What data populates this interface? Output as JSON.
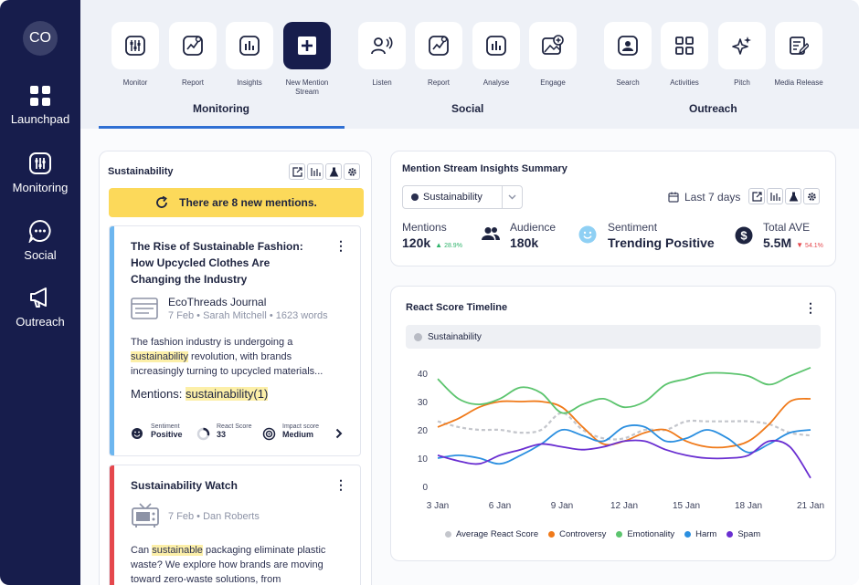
{
  "sidebar": {
    "avatar": "CO",
    "items": [
      {
        "label": "Launchpad",
        "icon": "grid-icon"
      },
      {
        "label": "Monitoring",
        "icon": "sliders-icon"
      },
      {
        "label": "Social",
        "icon": "chat-icon"
      },
      {
        "label": "Outreach",
        "icon": "megaphone-icon"
      }
    ]
  },
  "toolbar": {
    "groups": [
      {
        "label": "Monitoring",
        "active": true
      },
      {
        "label": "Social"
      },
      {
        "label": "Outreach"
      }
    ],
    "tools": [
      {
        "label": "Monitor",
        "icon": "monitor-sliders-icon"
      },
      {
        "label": "Report",
        "icon": "report-chart-icon"
      },
      {
        "label": "Insights",
        "icon": "insights-bars-icon"
      },
      {
        "label": "New Mention Stream",
        "icon": "plus-icon"
      },
      {
        "label": "Listen",
        "icon": "listen-icon"
      },
      {
        "label": "Report",
        "icon": "report-chart-icon"
      },
      {
        "label": "Analyse",
        "icon": "analyse-bars-icon"
      },
      {
        "label": "Engage",
        "icon": "engage-image-icon"
      },
      {
        "label": "Search",
        "icon": "search-person-icon"
      },
      {
        "label": "Activities",
        "icon": "activities-grid-icon"
      },
      {
        "label": "Pitch",
        "icon": "sparkle-icon"
      },
      {
        "label": "Media Release",
        "icon": "edit-doc-icon"
      }
    ],
    "accent": "#2f6fd3"
  },
  "feed": {
    "title": "Sustainability",
    "banner": "There are 8 new mentions.",
    "articles": [
      {
        "title": "The Rise of Sustainable Fashion: How Upcycled Clothes Are Changing the Industry",
        "source": "EcoThreads Journal",
        "meta": "7 Feb • Sarah Mitchell • 1623 words",
        "body_pre": "The fashion industry is undergoing a ",
        "body_hl": "sustainability",
        "body_post": " revolution, with brands increasingly turning to upcycled materials...",
        "mentions_label": "Mentions:",
        "mentions_value": "sustainability(1)",
        "stripe_color": "#6db6ef",
        "metrics": [
          {
            "label": "Sentiment",
            "value": "Positive"
          },
          {
            "label": "React Score",
            "value": "33"
          },
          {
            "label": "Impact score",
            "value": "Medium"
          }
        ]
      },
      {
        "title": "Sustainability Watch",
        "meta": "7 Feb • Dan Roberts",
        "body_pre": "Can ",
        "body_hl": "sustainable",
        "body_post": " packaging eliminate plastic waste? We explore how brands are moving toward zero-waste solutions, from",
        "stripe_color": "#e5484d"
      }
    ]
  },
  "summary": {
    "title": "Mention Stream Insights Summary",
    "stream_select": "Sustainability",
    "date_range": "Last 7 days",
    "stats": [
      {
        "label": "Mentions",
        "value": "120k",
        "change": "28.9%",
        "direction": "up",
        "color": "#2fb36b"
      },
      {
        "label": "Audience",
        "value": "180k"
      },
      {
        "label": "Sentiment",
        "value": "Trending Positive"
      },
      {
        "label": "Total AVE",
        "value": "5.5M",
        "change": "54.1%",
        "direction": "down",
        "color": "#e5484d"
      }
    ]
  },
  "timeline": {
    "title": "React Score Timeline",
    "filter_chip": "Sustainability"
  },
  "chart_data": {
    "type": "line",
    "x": [
      "3 Jan",
      "4 Jan",
      "5 Jan",
      "6 Jan",
      "7 Jan",
      "8 Jan",
      "9 Jan",
      "10 Jan",
      "11 Jan",
      "12 Jan",
      "13 Jan",
      "14 Jan",
      "15 Jan",
      "16 Jan",
      "17 Jan",
      "18 Jan",
      "19 Jan",
      "20 Jan",
      "21 Jan"
    ],
    "x_ticks": [
      "3 Jan",
      "6 Jan",
      "9 Jan",
      "12 Jan",
      "15 Jan",
      "18 Jan",
      "21 Jan"
    ],
    "ylim": [
      0,
      40
    ],
    "y_ticks": [
      0,
      10,
      20,
      30,
      40
    ],
    "grid": false,
    "legend": "bottom",
    "series": [
      {
        "name": "Average React Score",
        "color": "#c4c6cc",
        "dashed": true,
        "values": [
          23,
          21,
          20,
          20,
          19,
          20,
          26,
          20,
          17,
          17,
          20,
          20,
          23,
          23,
          23,
          23,
          22,
          19,
          18
        ]
      },
      {
        "name": "Controversy",
        "color": "#f07a1a",
        "values": [
          21,
          24,
          28,
          30,
          30,
          30,
          28,
          21,
          15,
          16,
          19,
          20,
          16,
          14,
          14,
          16,
          22,
          30,
          31
        ]
      },
      {
        "name": "Emotionality",
        "color": "#5cc46e",
        "values": [
          38,
          31,
          29,
          31,
          35,
          33,
          26,
          29,
          31,
          28,
          30,
          36,
          38,
          40,
          40,
          39,
          36,
          39,
          42
        ]
      },
      {
        "name": "Harm",
        "color": "#2b8fe0",
        "values": [
          10,
          11,
          10,
          8,
          11,
          15,
          20,
          18,
          16,
          21,
          21,
          16,
          17,
          20,
          17,
          12,
          15,
          19,
          20
        ]
      },
      {
        "name": "Spam",
        "color": "#6a2fd1",
        "values": [
          11,
          9,
          8,
          11,
          13,
          15,
          14,
          13,
          14,
          16,
          16,
          13,
          11,
          10,
          10,
          11,
          16,
          14,
          3
        ]
      }
    ]
  }
}
